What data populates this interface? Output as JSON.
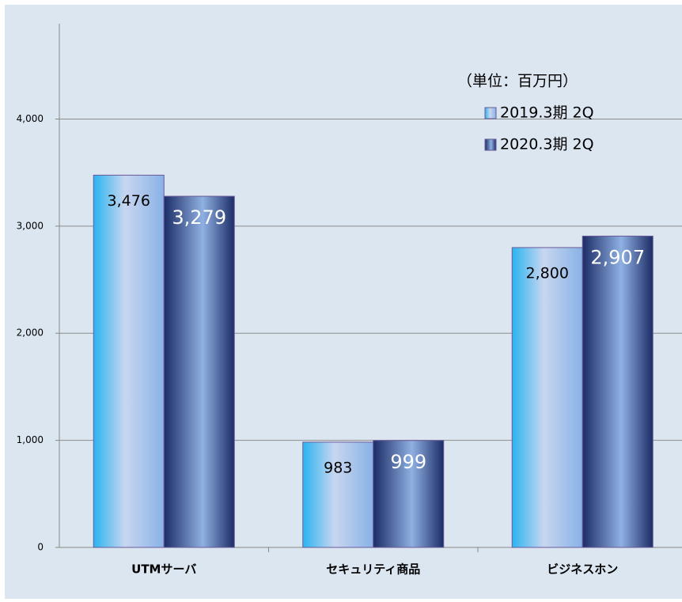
{
  "chart_data": {
    "type": "bar",
    "annotation": "（単位：百万円）",
    "categories": [
      "UTMサーバ",
      "セキュリティ商品",
      "ビジネスホン"
    ],
    "series": [
      {
        "name": "2019.3期 2Q",
        "color": "#2ab4f0",
        "values": [
          3476,
          983,
          2800
        ],
        "value_labels": [
          "3,476",
          "983",
          "2,800"
        ]
      },
      {
        "name": "2020.3期 2Q",
        "color": "#1c2c66",
        "values": [
          3279,
          999,
          2907
        ],
        "value_labels": [
          "3,279",
          "999",
          "2,907"
        ]
      }
    ],
    "ylim": [
      0,
      4890
    ],
    "yticks": [
      0,
      {
        "value": 1000,
        "label": "1,000"
      },
      {
        "value": 2000,
        "label": "2,000"
      },
      {
        "value": 3000,
        "label": "3,000"
      },
      {
        "value": 4000,
        "label": "4,000"
      }
    ],
    "grid": true
  }
}
